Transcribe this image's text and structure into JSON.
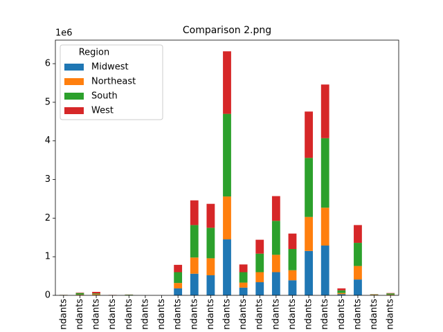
{
  "chart_data": {
    "type": "stacked_bar",
    "title": "Comparison 2.png",
    "offset_label": "1e6",
    "categories": [
      "ndants",
      "ndants",
      "ndants",
      "ndants",
      "ndants",
      "ndants",
      "ndants",
      "ndants",
      "ndants",
      "ndants",
      "ndants",
      "ndants",
      "ndants",
      "ndants",
      "ndants",
      "ndants",
      "ndants",
      "ndants",
      "ndants",
      "ndants",
      "ndants"
    ],
    "series": [
      {
        "name": "Midwest",
        "color": "#1f77b4",
        "values": [
          0.003,
          0.01,
          0.01,
          0.003,
          0.005,
          0,
          0,
          0.18,
          0.56,
          0.52,
          1.45,
          0.2,
          0.34,
          0.6,
          0.39,
          1.15,
          1.29,
          0.03,
          0.41,
          0.005,
          0.01
        ]
      },
      {
        "name": "Northeast",
        "color": "#ff7f0e",
        "values": [
          0.003,
          0.01,
          0.02,
          0.002,
          0.004,
          0,
          0,
          0.14,
          0.42,
          0.44,
          1.11,
          0.13,
          0.26,
          0.45,
          0.26,
          0.88,
          0.98,
          0.03,
          0.35,
          0.01,
          0.01
        ]
      },
      {
        "name": "South",
        "color": "#2ca02c",
        "values": [
          0.005,
          0.04,
          0.02,
          0.004,
          0.008,
          0,
          0,
          0.28,
          0.84,
          0.79,
          2.14,
          0.27,
          0.48,
          0.88,
          0.55,
          1.53,
          1.8,
          0.07,
          0.6,
          0.01,
          0.03
        ]
      },
      {
        "name": "West",
        "color": "#d62728",
        "values": [
          0.002,
          0.01,
          0.04,
          0.002,
          0.003,
          0,
          0,
          0.19,
          0.64,
          0.62,
          1.62,
          0.2,
          0.36,
          0.64,
          0.4,
          1.2,
          1.39,
          0.05,
          0.46,
          0.005,
          0.01
        ]
      }
    ],
    "ylim": [
      0,
      6.61
    ],
    "yticks": [
      0,
      1,
      2,
      3,
      4,
      5,
      6
    ],
    "legend": {
      "title": "Region",
      "corner": "upper-left"
    }
  }
}
